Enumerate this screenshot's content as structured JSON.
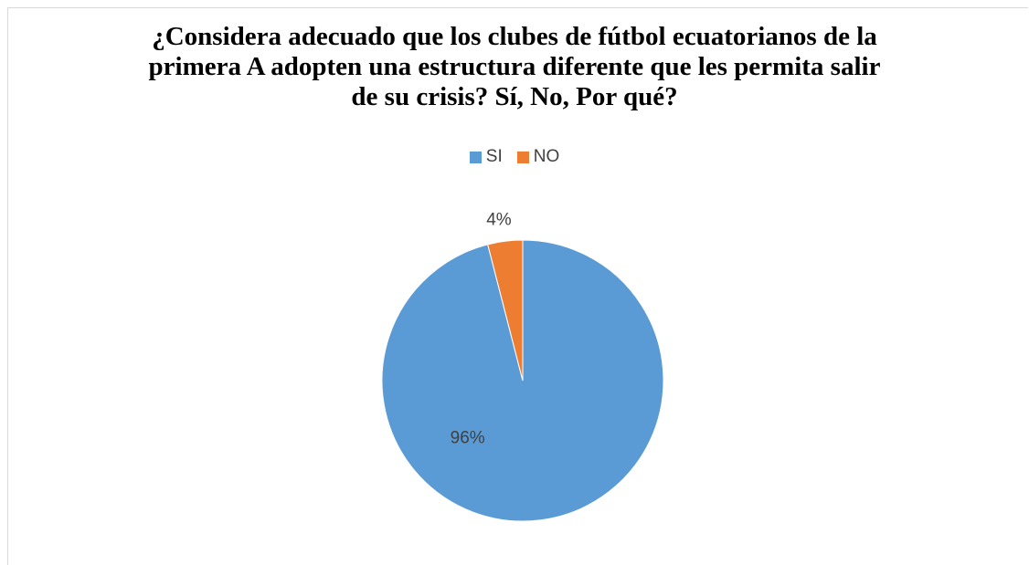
{
  "chart_data": {
    "type": "pie",
    "title_lines": [
      "¿Considera adecuado que los clubes de fútbol ecuatorianos de la",
      "primera A adopten una estructura diferente que les permita salir",
      "de su crisis? Sí, No, Por qué?"
    ],
    "categories": [
      "SI",
      "NO"
    ],
    "values": [
      96,
      4
    ],
    "data_labels": [
      "96%",
      "4%"
    ],
    "colors": [
      "#5b9bd5",
      "#ed7d31"
    ],
    "legend_position": "top"
  }
}
